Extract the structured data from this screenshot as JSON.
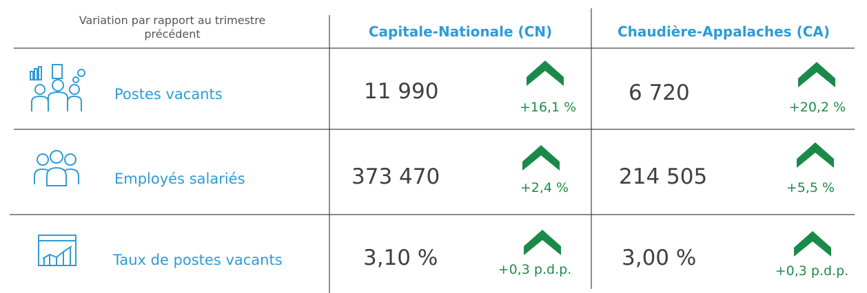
{
  "header": {
    "caption": "Variation par rapport au trimestre précédent",
    "columns": [
      "Capitale-Nationale (CN)",
      "Chaudière-Appalaches (CA)"
    ]
  },
  "rows": [
    {
      "label": "Postes vacants",
      "cells": [
        {
          "value": "11 990",
          "change": "+16,1 %"
        },
        {
          "value": "6 720",
          "change": "+20,2 %"
        }
      ]
    },
    {
      "label": "Employés salariés",
      "cells": [
        {
          "value": "373 470",
          "change": "+2,4 %"
        },
        {
          "value": "214 505",
          "change": "+5,5 %"
        }
      ]
    },
    {
      "label": "Taux de postes vacants",
      "cells": [
        {
          "value": "3,10 %",
          "change": "+0,3 p.d.p."
        },
        {
          "value": "3,00 %",
          "change": "+0,3 p.d.p."
        }
      ]
    }
  ]
}
